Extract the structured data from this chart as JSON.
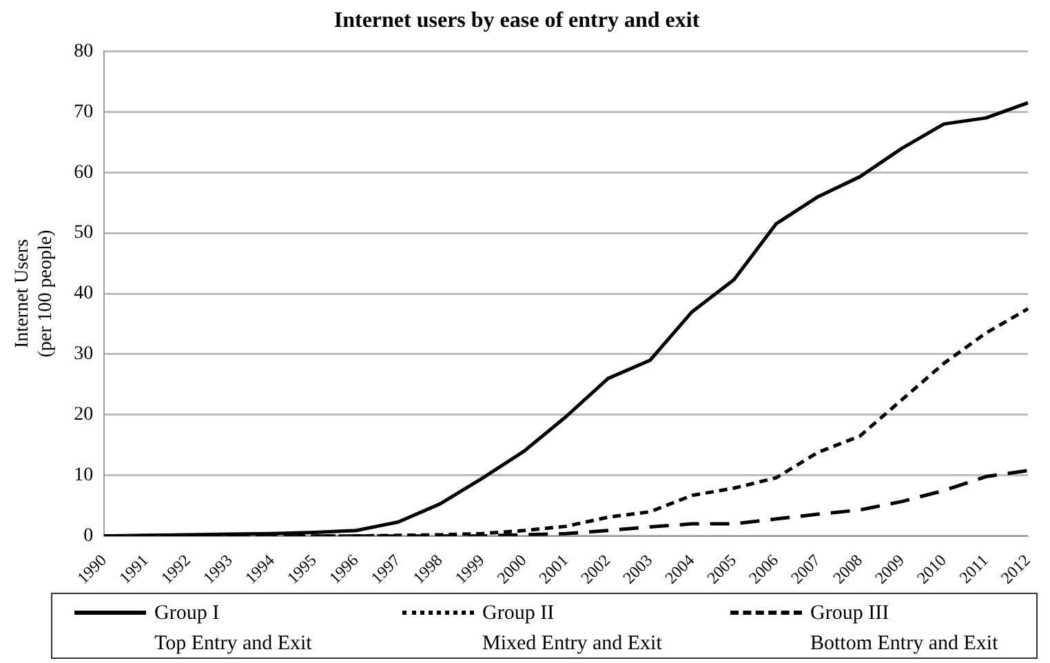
{
  "chart_data": {
    "type": "line",
    "title": "Internet users by ease of entry and exit",
    "ylabel": "Internet Users\n(per 100 people)",
    "categories": [
      "1990",
      "1991",
      "1992",
      "1993",
      "1994",
      "1995",
      "1996",
      "1997",
      "1998",
      "1999",
      "2000",
      "2001",
      "2002",
      "2003",
      "2004",
      "2005",
      "2006",
      "2007",
      "2008",
      "2009",
      "2010",
      "2011",
      "2012"
    ],
    "ylim": [
      0,
      80
    ],
    "yticks": [
      0,
      10,
      20,
      30,
      40,
      50,
      60,
      70,
      80
    ],
    "grid": "y",
    "legend": "bottom",
    "marker": "none",
    "series": [
      {
        "name": "Group I\nTop Entry and Exit",
        "color": "#000000",
        "line_style": "solid",
        "values": [
          0,
          0.1,
          0.2,
          0.3,
          0.4,
          0.6,
          0.9,
          2.3,
          5.3,
          9.5,
          14,
          19.7,
          26,
          29,
          37,
          42.3,
          51.5,
          56,
          59.3,
          64,
          68,
          69,
          71.5
        ]
      },
      {
        "name": "Group II\nMixed Entry and Exit",
        "color": "#000000",
        "line_style": "dotted",
        "values": [
          0,
          0,
          0,
          0,
          0,
          0,
          0,
          0.1,
          0.2,
          0.4,
          0.9,
          1.6,
          3.1,
          4,
          6.7,
          7.9,
          9.6,
          13.8,
          16.5,
          22.5,
          28.5,
          33.5,
          37.5
        ]
      },
      {
        "name": "Group III\nBottom Entry and Exit",
        "color": "#000000",
        "line_style": "dashed",
        "values": [
          0,
          0,
          0,
          0,
          0,
          0,
          0,
          0,
          0,
          0,
          0.2,
          0.4,
          0.9,
          1.5,
          2,
          2,
          2.8,
          3.6,
          4.3,
          5.7,
          7.5,
          9.8,
          10.8
        ]
      }
    ]
  }
}
